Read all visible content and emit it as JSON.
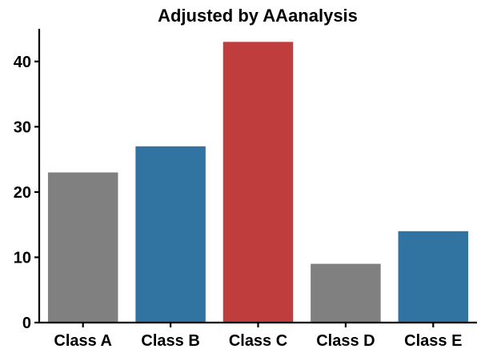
{
  "chart_data": {
    "type": "bar",
    "title": "Adjusted by AAanalysis",
    "xlabel": "",
    "ylabel": "",
    "categories": [
      "Class A",
      "Class B",
      "Class C",
      "Class D",
      "Class E"
    ],
    "values": [
      23,
      27,
      43,
      9,
      14
    ],
    "bar_colors": [
      "#808080",
      "#3274A1",
      "#C03D3E",
      "#808080",
      "#3274A1"
    ],
    "ylim": [
      0,
      45
    ],
    "yticks": [
      0,
      10,
      20,
      30,
      40
    ],
    "grid": false,
    "legend": "none"
  }
}
